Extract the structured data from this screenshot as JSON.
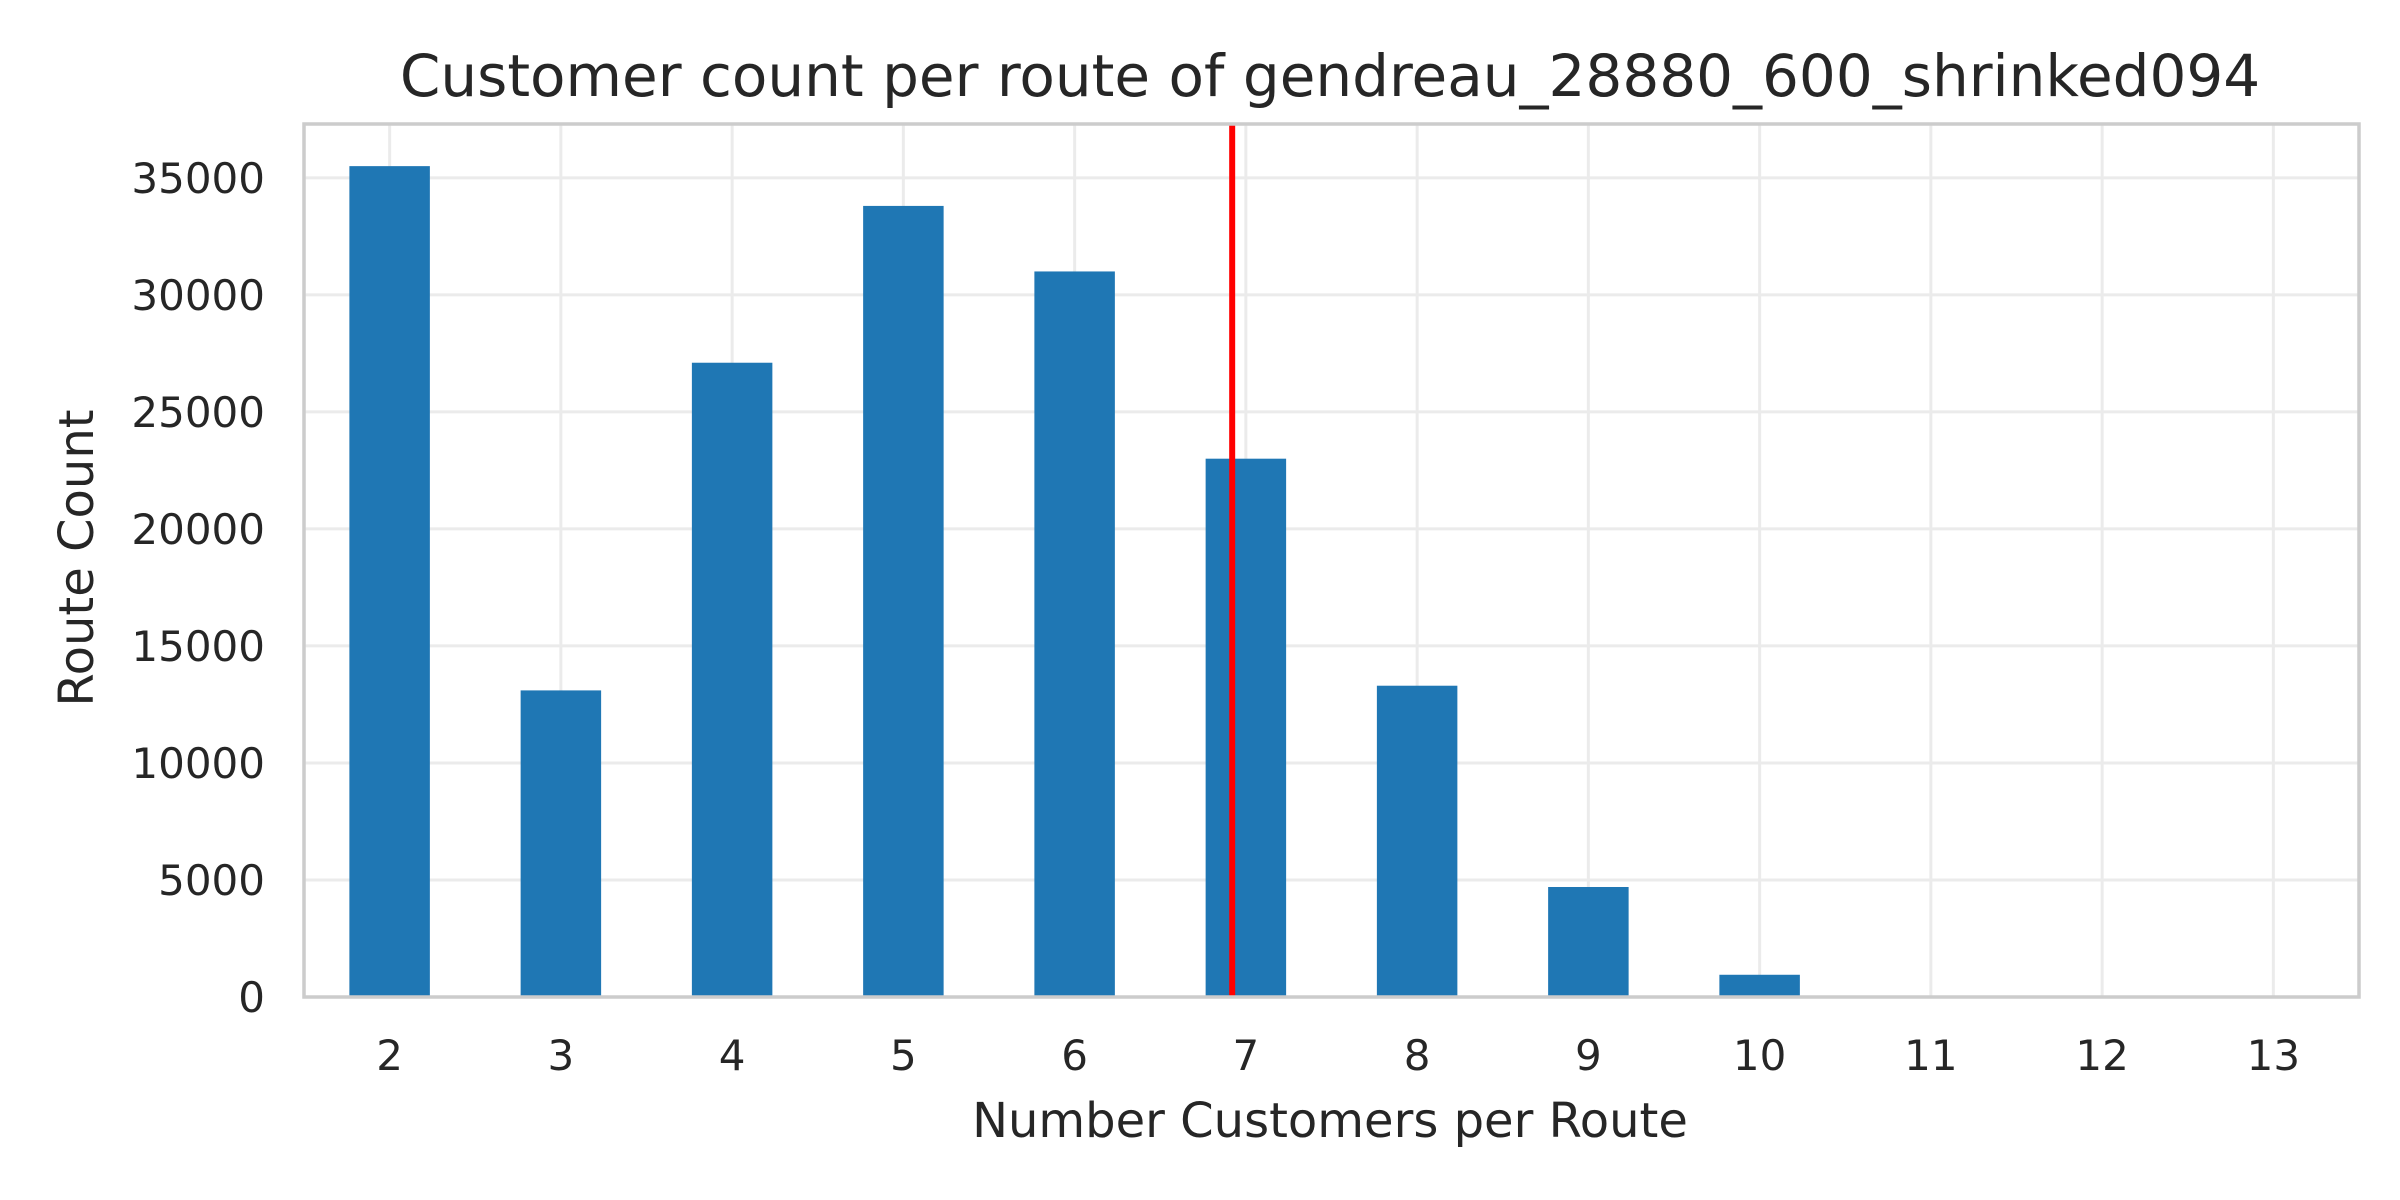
{
  "chart_data": {
    "type": "bar",
    "title": "Customer count per route of gendreau_28880_600_shrinked094",
    "xlabel": "Number Customers per Route",
    "ylabel": "Route Count",
    "categories": [
      "2",
      "3",
      "4",
      "5",
      "6",
      "7",
      "8",
      "9",
      "10",
      "11",
      "12",
      "13"
    ],
    "values": [
      35500,
      13100,
      27100,
      33800,
      31000,
      23000,
      13300,
      4700,
      950,
      0,
      0,
      0
    ],
    "ylim": [
      0,
      37300
    ],
    "yticks": [
      0,
      5000,
      10000,
      15000,
      20000,
      25000,
      30000,
      35000
    ],
    "grid": true,
    "bar_color": "#1f77b4",
    "reference_line": {
      "x": 6.92,
      "color": "#ff0000"
    }
  }
}
